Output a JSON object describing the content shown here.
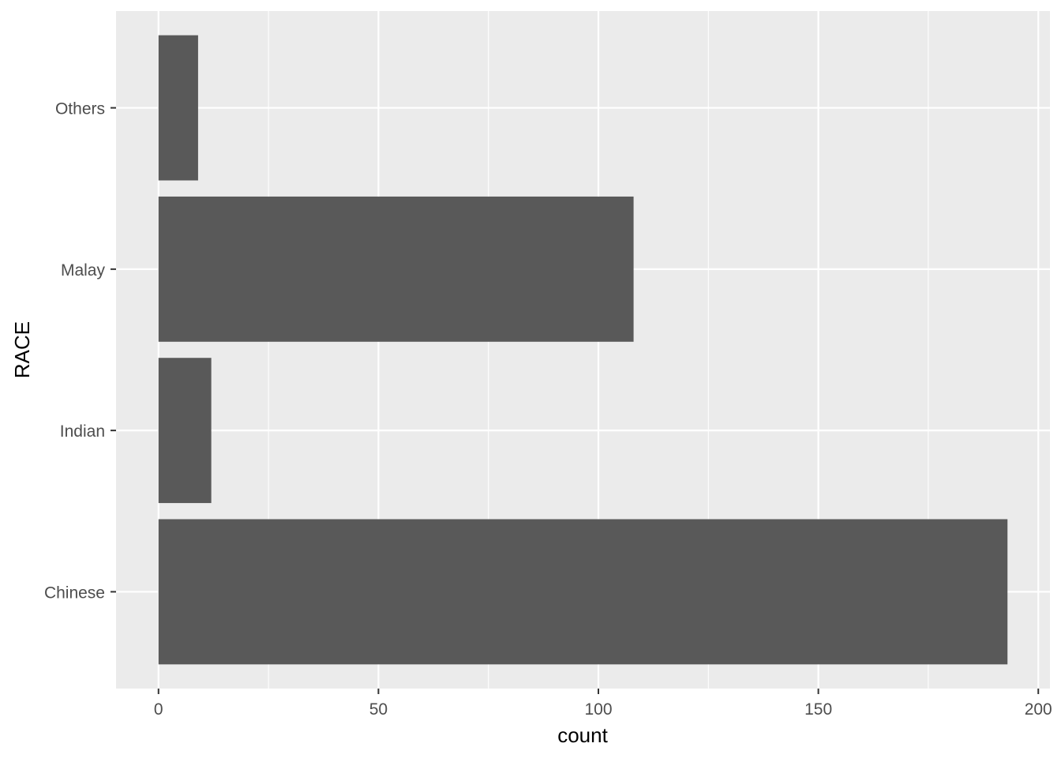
{
  "chart_data": {
    "type": "bar",
    "orientation": "horizontal",
    "categories": [
      "Chinese",
      "Indian",
      "Malay",
      "Others"
    ],
    "values": [
      193,
      12,
      108,
      9
    ],
    "title": "",
    "xlabel": "count",
    "ylabel": "RACE",
    "xlim": [
      -9.65,
      202.65
    ],
    "xticks": [
      0,
      50,
      100,
      150,
      200
    ],
    "grid": true,
    "legend": "none",
    "colors": {
      "bar": "#595959",
      "panel": "#EBEBEB",
      "grid": "#FFFFFF"
    }
  }
}
